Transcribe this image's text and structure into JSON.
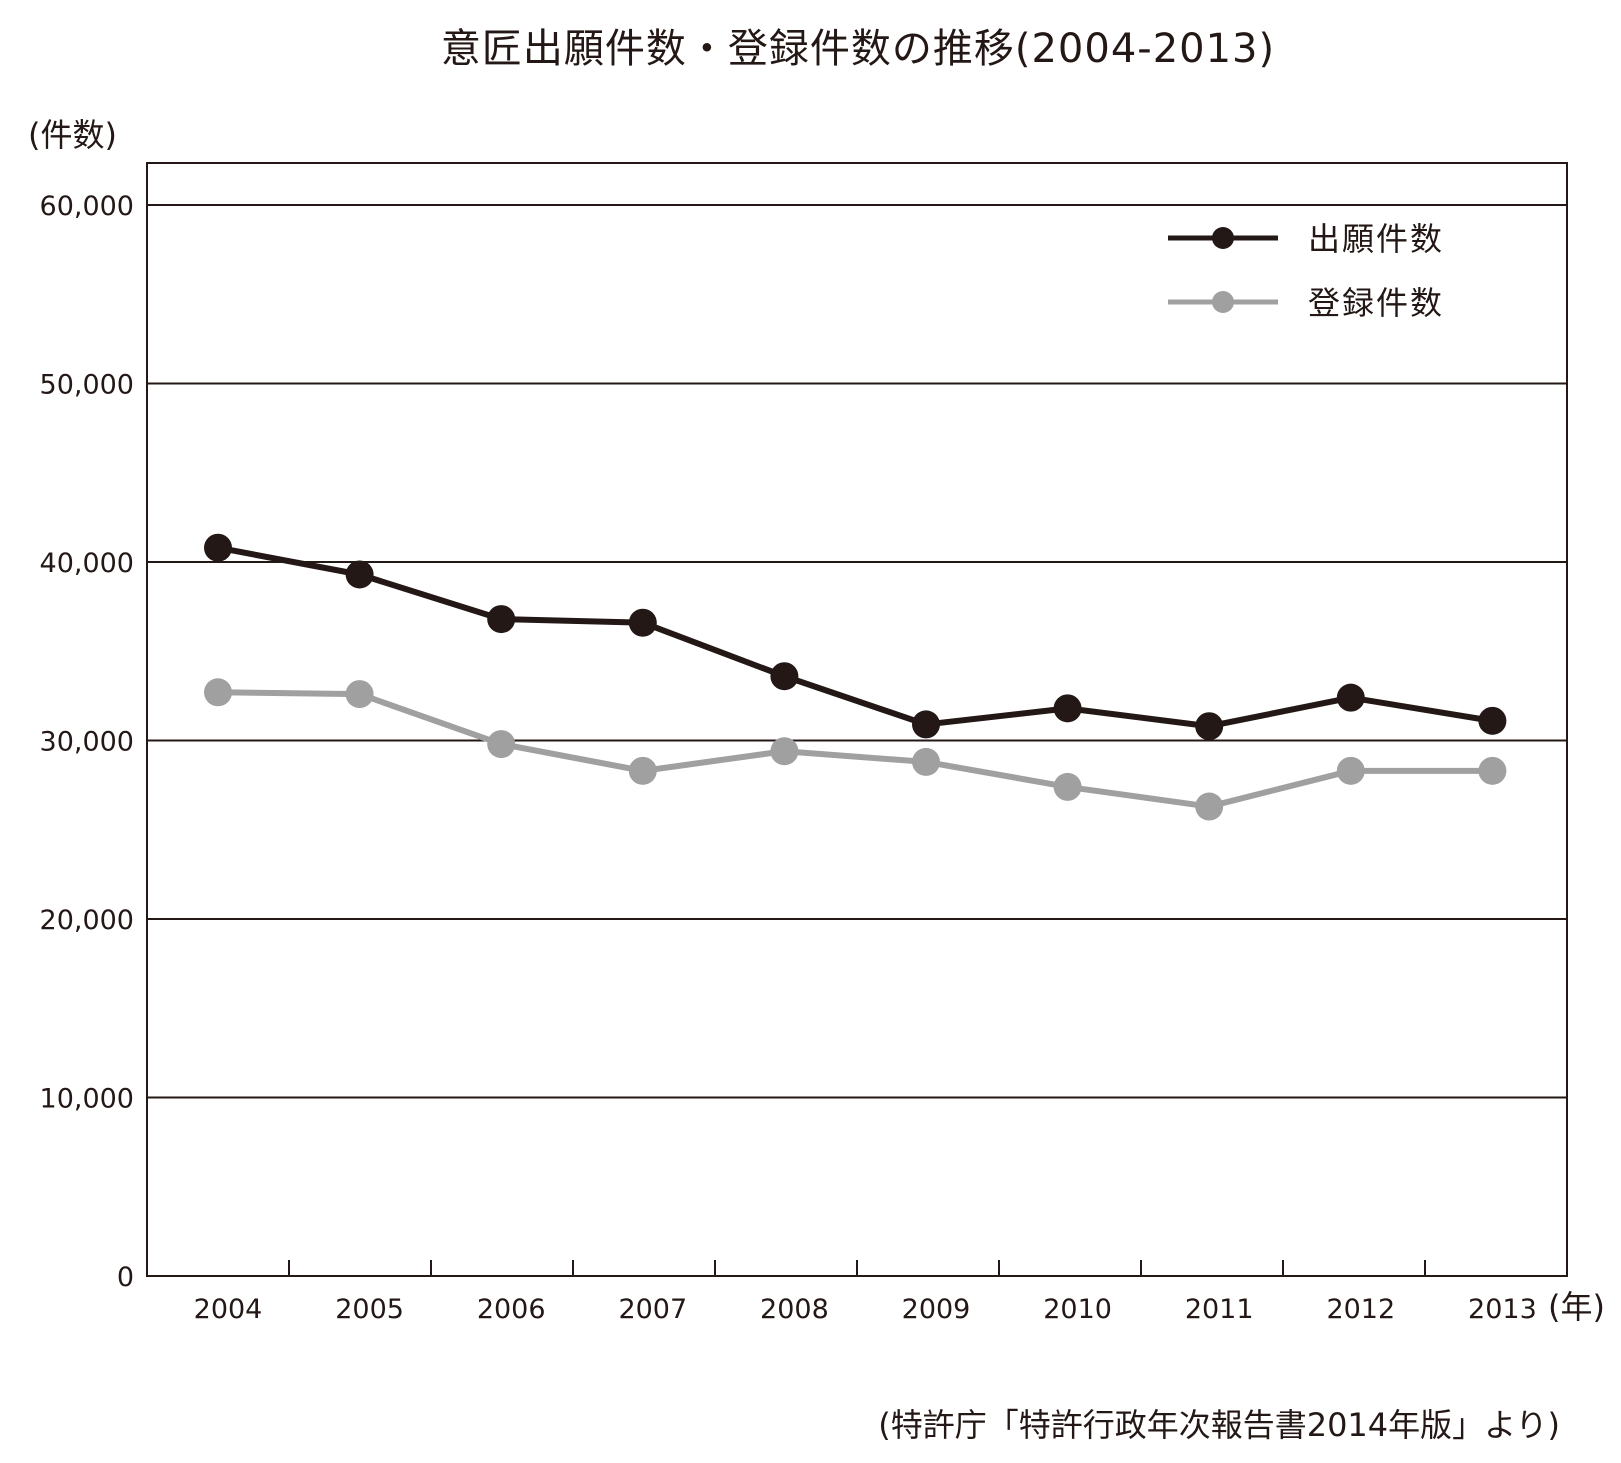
{
  "chart_data": {
    "type": "line",
    "title": "意匠出願件数・登録件数の推移(2004-2013)",
    "ylabel": "(件数)",
    "xlabel": "(年)",
    "x": [
      "2004",
      "2005",
      "2006",
      "2007",
      "2008",
      "2009",
      "2010",
      "2011",
      "2012",
      "2013"
    ],
    "yticks": [
      "0",
      "10,000",
      "20,000",
      "30,000",
      "40,000",
      "50,000",
      "60,000"
    ],
    "ylim": [
      0,
      62000
    ],
    "grid": true,
    "legend_position": "top-right",
    "series": [
      {
        "name": "出願件数",
        "color": "#231815",
        "values": [
          40800,
          39300,
          36800,
          36600,
          33600,
          30900,
          31800,
          30800,
          32400,
          31100
        ]
      },
      {
        "name": "登録件数",
        "color": "#a0a0a0",
        "values": [
          32700,
          32600,
          29800,
          28300,
          29400,
          28800,
          27400,
          26300,
          28300,
          28300
        ]
      }
    ],
    "source": "(特許庁「特許行政年次報告書2014年版」より)"
  }
}
